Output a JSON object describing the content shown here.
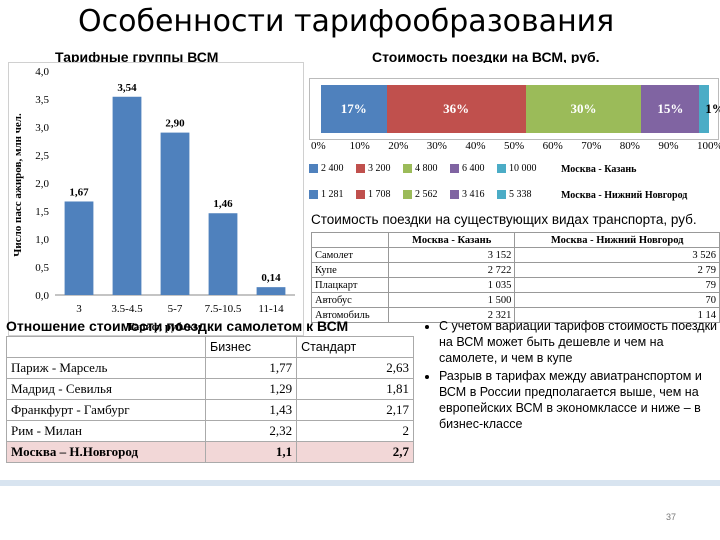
{
  "slide": {
    "title": "Особенности тарифообразования",
    "page_number": "37"
  },
  "left_chart": {
    "panel_title": "Тарифные группы ВСМ"
  },
  "right_chart": {
    "panel_title": "Стоимость поездки на ВСМ, руб."
  },
  "chart_data": [
    {
      "type": "bar",
      "categories": [
        "3",
        "3.5-4.5",
        "5-7",
        "7.5-10.5",
        "11-14"
      ],
      "values": [
        1.67,
        3.54,
        2.9,
        1.46,
        0.14
      ],
      "value_labels": [
        "1,67",
        "3,54",
        "2,90",
        "1,46",
        "0,14"
      ],
      "ylabel": "Число пасс ажиров, млн чел.",
      "xlabel": "Тариф, руб./км",
      "ylim": [
        0,
        4
      ],
      "yticks": [
        "0,0",
        "0,5",
        "1,0",
        "1,5",
        "2,0",
        "2,5",
        "3,0",
        "3,5",
        "4,0"
      ],
      "bar_color": "#4f81bd",
      "grid": false
    },
    {
      "type": "bar",
      "orientation": "horizontal-stacked-100",
      "series": [
        {
          "label": "17%",
          "value": 17,
          "color": "#4f81bd"
        },
        {
          "label": "36%",
          "value": 36,
          "color": "#c0504d"
        },
        {
          "label": "30%",
          "value": 30,
          "color": "#9bbb59"
        },
        {
          "label": "15%",
          "value": 15,
          "color": "#8064a2"
        },
        {
          "label": "1%",
          "value": 1,
          "color": "#4bacc6"
        }
      ],
      "xticks": [
        "0%",
        "10%",
        "20%",
        "30%",
        "40%",
        "50%",
        "60%",
        "70%",
        "80%",
        "90%",
        "100%"
      ],
      "xlim": [
        0,
        100
      ],
      "legend_routes": [
        {
          "route": "Москва - Казань",
          "prices": [
            "2 400",
            "3 200",
            "4 800",
            "6 400",
            "10 000"
          ]
        },
        {
          "route": "Москва - Нижний Новгород",
          "prices": [
            "1 281",
            "1 708",
            "2 562",
            "3 416",
            "5 338"
          ]
        }
      ]
    }
  ],
  "transport_table": {
    "title": "Стоимость поездки на существующих видах транспорта, руб.",
    "headers": [
      "",
      "Москва - Казань",
      "Москва - Нижний Новгород"
    ],
    "rows": [
      {
        "mode": "Самолет",
        "kazan": "3 152",
        "nn": "3 526"
      },
      {
        "mode": "Купе",
        "kazan": "2 722",
        "nn": "2 79"
      },
      {
        "mode": "Плацкарт",
        "kazan": "1 035",
        "nn": "79"
      },
      {
        "mode": "Автобус",
        "kazan": "1 500",
        "nn": "70"
      },
      {
        "mode": "Автомобиль",
        "kazan": "2 321",
        "nn": "1 14"
      }
    ]
  },
  "ratio_table": {
    "title": "Отношение стоимости поездки самолетом к ВСМ",
    "headers": [
      "",
      "Бизнес",
      "Стандарт"
    ],
    "rows": [
      {
        "route": "Париж - Марсель",
        "business": "1,77",
        "standard": "2,63"
      },
      {
        "route": "Мадрид - Севилья",
        "business": "1,29",
        "standard": "1,81"
      },
      {
        "route": "Франкфурт - Гамбург",
        "business": "1,43",
        "standard": "2,17"
      },
      {
        "route": "Рим - Милан",
        "business": "2,32",
        "standard": "2"
      },
      {
        "route": "Москва – Н.Новгород",
        "business": "1,1",
        "standard": "2,7"
      }
    ]
  },
  "bullets": [
    "С учетом вариации тарифов стоимость поездки на ВСМ может быть дешевле и чем на самолете, и чем в купе",
    "Разрыв в тарифах между авиатранспортом и ВСМ в России предполагается выше, чем на европейских ВСМ в экономклассе и ниже – в бизнес-классе"
  ]
}
